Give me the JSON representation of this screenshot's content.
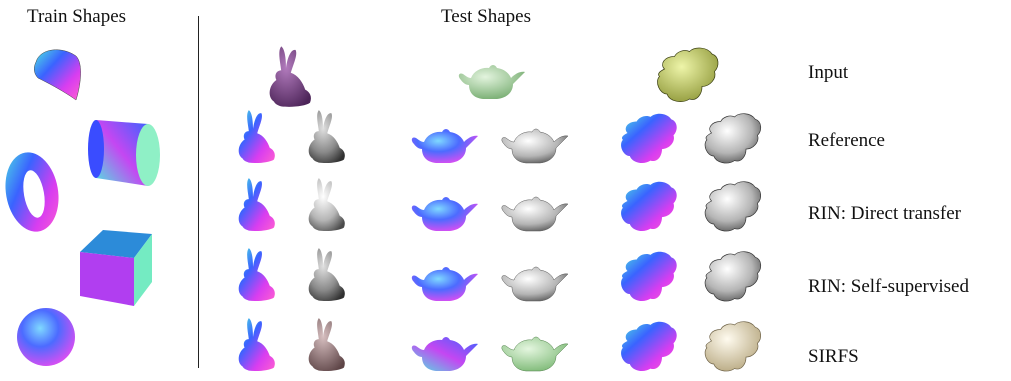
{
  "headers": {
    "train": "Train Shapes",
    "test": "Test Shapes"
  },
  "row_labels": [
    "Input",
    "Reference",
    "RIN: Direct transfer",
    "RIN: Self-supervised",
    "SIRFS"
  ],
  "train_shapes": [
    "cone-shape",
    "cylinder-shape",
    "torus-shape",
    "cube-shape",
    "sphere-shape"
  ],
  "test_shapes": [
    "bunny",
    "teapot",
    "monkey-head"
  ],
  "colors": {
    "bunny_input": "#7a3f86",
    "teapot_input": "#a9d3a0",
    "monkey_input": "#c9d46a",
    "normal_blue": "#3a63ff",
    "normal_magenta": "#d83df0",
    "normal_cyan": "#4fe6e0",
    "shading_gray": "#bdbdbd",
    "sirfs_bunny": "#9c7d7f",
    "sirfs_teapot": "#a7dca0",
    "sirfs_monkey": "#e6dcbc"
  }
}
